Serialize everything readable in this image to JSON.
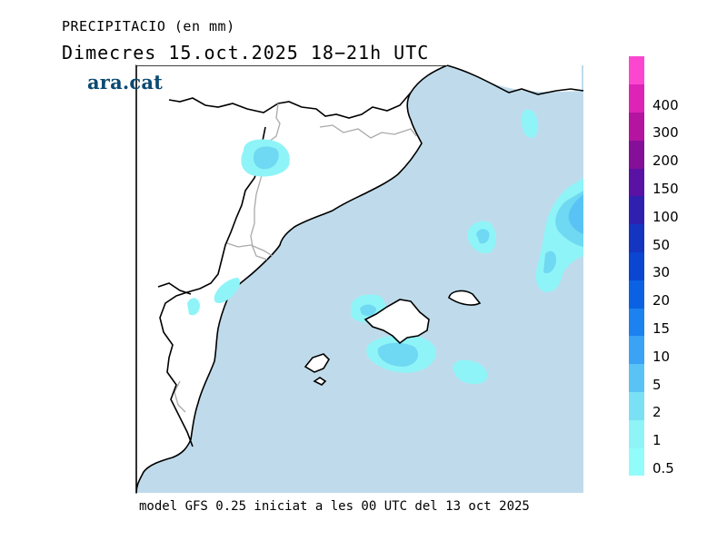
{
  "header": {
    "title": "PRECIPITACIO (en mm)",
    "subtitle": "Dimecres  15.oct.2025 18−21h UTC",
    "brand": "ara.cat"
  },
  "footer": "model GFS 0.25 iniciat a les 00 UTC del 13 oct 2025",
  "legend": {
    "levels": [
      {
        "label": "0.5",
        "color": "#92fcfb"
      },
      {
        "label": "1",
        "color": "#8ff4f7"
      },
      {
        "label": "2",
        "color": "#7ae0f3"
      },
      {
        "label": "5",
        "color": "#5ac3f5"
      },
      {
        "label": "10",
        "color": "#3aa3f5"
      },
      {
        "label": "15",
        "color": "#1c82ef"
      },
      {
        "label": "20",
        "color": "#0a62e3"
      },
      {
        "label": "30",
        "color": "#0a46d0"
      },
      {
        "label": "50",
        "color": "#1534c0"
      },
      {
        "label": "100",
        "color": "#3020b0"
      },
      {
        "label": "150",
        "color": "#5a12a5"
      },
      {
        "label": "200",
        "color": "#850f98"
      },
      {
        "label": "300",
        "color": "#b4149f"
      },
      {
        "label": "400",
        "color": "#dd24b7"
      },
      {
        "label": "",
        "color": "#fb47cf"
      }
    ]
  },
  "colors": {
    "sea": "#bfdbeb",
    "land": "#ffffff",
    "coastline": "#000000",
    "border": "#a9a9a9"
  }
}
